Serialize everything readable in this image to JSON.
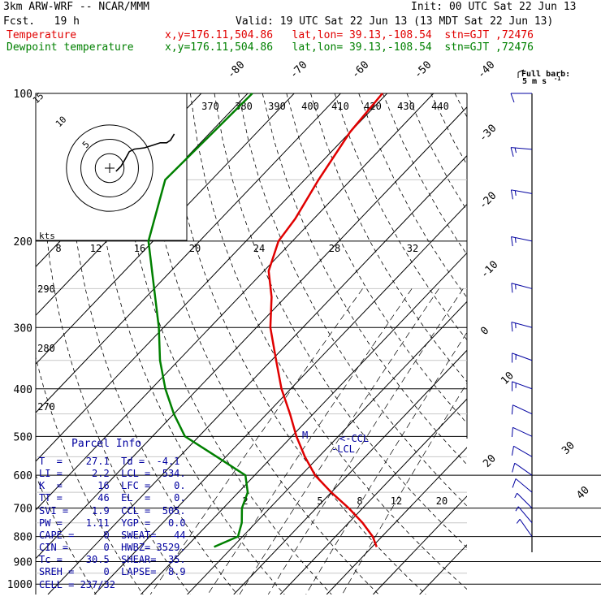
{
  "header": {
    "model": "3km ARW-WRF -- NCAR/MMM",
    "init": "Init: 00 UTC Sat 22 Jun 13",
    "fcst": "Fcst.   19 h",
    "valid": "Valid: 19 UTC Sat 22 Jun 13 (13 MDT Sat 22 Jun 13)",
    "temp_label": "Temperature",
    "dew_label": "Dewpoint temperature",
    "temp_loc": "x,y=176.11,504.86   lat,lon= 39.13,-108.54  stn=GJT ,72476",
    "dew_loc": "x,y=176.11,504.86   lat,lon= 39.13,-108.54  stn=GJT ,72476"
  },
  "colors": {
    "temperature": "#e00000",
    "dewpoint": "#008000",
    "parcel": "#0000a0",
    "wind": "#0000a0"
  },
  "barb_key": {
    "title": "Full barb:",
    "value": "5 m s",
    "unit_sup": "-1"
  },
  "parcel_info": {
    "title": "Parcel Info",
    "rows": [
      "T  =    27.1  Td =  -4.1",
      "LI =     2.2  LCL =  534.",
      "K  =      16  LFC =    0.",
      "TT =      46  EL  =    0.",
      "SVI =    1.9  CCL =  505.",
      "PW =    1.11  YGP =   0.0",
      "CAPE =     0  SWEAT=   44",
      "CIN =      0  HWBZ= 3529.",
      "Tc =    30.5  SHEAR=  35.",
      "SREH =     0  LAPSE=  8.9",
      "CELL = 237/32"
    ]
  },
  "annotations": {
    "lcl": "-LCL",
    "ccl": "<-CCL",
    "m": "M"
  },
  "hodograph": {
    "unit": "kts",
    "rings": [
      "5",
      "10",
      "15"
    ],
    "points": [
      [
        1.0,
        -0.5
      ],
      [
        1.8,
        0.3
      ],
      [
        2.5,
        1.5
      ],
      [
        3.1,
        2.6
      ],
      [
        3.9,
        3.0
      ],
      [
        5.5,
        3.2
      ],
      [
        6.8,
        3.6
      ],
      [
        8.0,
        4.0
      ],
      [
        9.0,
        4.0
      ],
      [
        9.6,
        4.4
      ],
      [
        10.2,
        5.4
      ]
    ]
  },
  "chart_data": {
    "type": "line",
    "title": "",
    "xlabel": "",
    "ylabel": "",
    "pressure_levels": [
      100,
      200,
      300,
      400,
      500,
      600,
      700,
      800,
      900,
      1000
    ],
    "isotherm_labels": [
      "-80",
      "-70",
      "-60",
      "-50",
      "-40",
      "-30",
      "-20",
      "-10",
      "0",
      "10",
      "20",
      "30",
      "40"
    ],
    "theta_labels": [
      "370",
      "380",
      "390",
      "400",
      "410",
      "420",
      "430",
      "440",
      "290",
      "280",
      "270"
    ],
    "mixing_ratio_labels_top": [
      "8",
      "12",
      "16",
      "20",
      "24",
      "28",
      "32"
    ],
    "mixing_ratio_labels_bottom": [
      "2",
      "5",
      "8",
      "12",
      "20"
    ],
    "series": [
      {
        "name": "Temperature",
        "values": [
          [
            100,
            -61
          ],
          [
            120,
            -60
          ],
          [
            150,
            -57
          ],
          [
            180,
            -54
          ],
          [
            200,
            -53
          ],
          [
            230,
            -49
          ],
          [
            260,
            -43
          ],
          [
            300,
            -37
          ],
          [
            350,
            -29
          ],
          [
            400,
            -22
          ],
          [
            450,
            -15
          ],
          [
            500,
            -9
          ],
          [
            550,
            -3
          ],
          [
            600,
            3
          ],
          [
            650,
            10
          ],
          [
            700,
            17
          ],
          [
            750,
            23
          ],
          [
            800,
            28
          ],
          [
            840,
            31
          ]
        ]
      },
      {
        "name": "Dewpoint temperature",
        "values": [
          [
            100,
            -89
          ],
          [
            150,
            -90
          ],
          [
            200,
            -81
          ],
          [
            250,
            -70
          ],
          [
            300,
            -61
          ],
          [
            350,
            -54
          ],
          [
            400,
            -47
          ],
          [
            450,
            -40
          ],
          [
            500,
            -33
          ],
          [
            550,
            -22
          ],
          [
            600,
            -12
          ],
          [
            650,
            -8
          ],
          [
            700,
            -6
          ],
          [
            750,
            -3
          ],
          [
            800,
            -1
          ],
          [
            840,
            -4
          ]
        ]
      }
    ],
    "wind_barbs": [
      [
        100,
        270,
        12
      ],
      [
        130,
        265,
        15
      ],
      [
        160,
        260,
        15
      ],
      [
        200,
        258,
        15
      ],
      [
        250,
        255,
        15
      ],
      [
        300,
        255,
        15
      ],
      [
        350,
        250,
        15
      ],
      [
        400,
        250,
        15
      ],
      [
        450,
        245,
        12
      ],
      [
        500,
        245,
        12
      ],
      [
        550,
        240,
        10
      ],
      [
        600,
        235,
        8
      ],
      [
        650,
        230,
        8
      ],
      [
        700,
        225,
        6
      ],
      [
        750,
        220,
        5
      ],
      [
        800,
        215,
        5
      ]
    ]
  }
}
